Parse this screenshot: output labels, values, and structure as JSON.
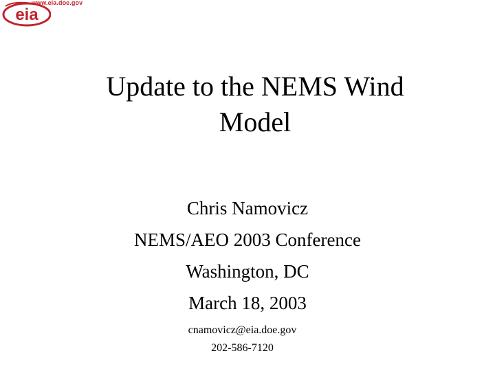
{
  "logo": {
    "url_text": "www.eia.doe.gov",
    "mark_text": "eia",
    "brand_color": "#c0232c"
  },
  "slide": {
    "title_line1": "Update to the NEMS Wind",
    "title_line2": "Model",
    "author": "Chris Namovicz",
    "event": "NEMS/AEO 2003 Conference",
    "location": "Washington, DC",
    "date": "March 18, 2003",
    "email": "cnamovicz@eia.doe.gov",
    "phone": "202-586-7120"
  }
}
